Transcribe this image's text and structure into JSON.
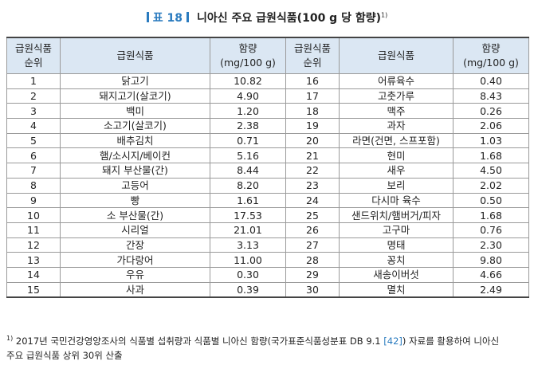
{
  "title": {
    "tab_label": "표 18",
    "text": "니아신 주요 급원식품(100 g 당 함량)",
    "note_mark": "1)"
  },
  "table": {
    "headers": {
      "rank": [
        "급원식품",
        "순위"
      ],
      "food": "급원식품",
      "amount": [
        "함량",
        "(mg/100 g)"
      ]
    },
    "rows": [
      {
        "r1": "1",
        "f1": "닭고기",
        "a1": "10.82",
        "r2": "16",
        "f2": "어류육수",
        "a2": "0.40"
      },
      {
        "r1": "2",
        "f1": "돼지고기(살코기)",
        "a1": "4.90",
        "r2": "17",
        "f2": "고춧가루",
        "a2": "8.43"
      },
      {
        "r1": "3",
        "f1": "백미",
        "a1": "1.20",
        "r2": "18",
        "f2": "맥주",
        "a2": "0.26"
      },
      {
        "r1": "4",
        "f1": "소고기(살코기)",
        "a1": "2.38",
        "r2": "19",
        "f2": "과자",
        "a2": "2.06"
      },
      {
        "r1": "5",
        "f1": "배추김치",
        "a1": "0.71",
        "r2": "20",
        "f2": "라면(건면, 스프포함)",
        "a2": "1.03"
      },
      {
        "r1": "6",
        "f1": "햄/소시지/베이컨",
        "a1": "5.16",
        "r2": "21",
        "f2": "현미",
        "a2": "1.68"
      },
      {
        "r1": "7",
        "f1": "돼지 부산물(간)",
        "a1": "8.44",
        "r2": "22",
        "f2": "새우",
        "a2": "4.50"
      },
      {
        "r1": "8",
        "f1": "고등어",
        "a1": "8.20",
        "r2": "23",
        "f2": "보리",
        "a2": "2.02"
      },
      {
        "r1": "9",
        "f1": "빵",
        "a1": "1.61",
        "r2": "24",
        "f2": "다시마 육수",
        "a2": "0.50"
      },
      {
        "r1": "10",
        "f1": "소 부산물(간)",
        "a1": "17.53",
        "r2": "25",
        "f2": "샌드위치/햄버거/피자",
        "a2": "1.68"
      },
      {
        "r1": "11",
        "f1": "시리얼",
        "a1": "21.01",
        "r2": "26",
        "f2": "고구마",
        "a2": "0.76"
      },
      {
        "r1": "12",
        "f1": "간장",
        "a1": "3.13",
        "r2": "27",
        "f2": "명태",
        "a2": "2.30"
      },
      {
        "r1": "13",
        "f1": "가다랑어",
        "a1": "11.00",
        "r2": "28",
        "f2": "꽁치",
        "a2": "9.80"
      },
      {
        "r1": "14",
        "f1": "우유",
        "a1": "0.30",
        "r2": "29",
        "f2": "새송이버섯",
        "a2": "4.66"
      },
      {
        "r1": "15",
        "f1": "사과",
        "a1": "0.39",
        "r2": "30",
        "f2": "멸치",
        "a2": "2.49"
      }
    ]
  },
  "footnote": {
    "mark": "1)",
    "text_before": "2017년 국민건강영양조사의 식품별 섭취량과 식품별 니아신 함량(국가표준식품성분표 DB 9.1 ",
    "ref": "[42]",
    "text_after": ") 자료를 활용하여 니아신",
    "line2": "주요 급원식품 상위 30위 산출"
  },
  "colors": {
    "accent": "#2a7bbf",
    "header_bg": "#dbe7f3"
  }
}
